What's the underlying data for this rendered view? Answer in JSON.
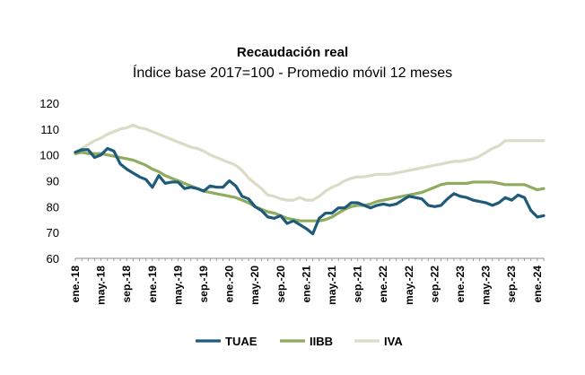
{
  "chart_data": {
    "type": "line",
    "title": "Recaudación real",
    "subtitle": "Índice base 2017=100 - Promedio móvil 12 meses",
    "xlabel": "",
    "ylabel": "",
    "ylim": [
      60,
      120
    ],
    "yticks": [
      "60",
      "70",
      "80",
      "90",
      "100",
      "110",
      "120"
    ],
    "xtick_labels": [
      "ene.-18",
      "may.-18",
      "sep.-18",
      "ene.-19",
      "may.-19",
      "sep.-19",
      "ene.-20",
      "may.-20",
      "sep.-20",
      "ene.-21",
      "may.-21",
      "sep.-21",
      "ene.-22",
      "may.-22",
      "sep.-22",
      "ene.-23",
      "may.-23",
      "sep.-23",
      "ene.-24"
    ],
    "legend_position": "bottom",
    "grid": false,
    "series": [
      {
        "name": "TUAE",
        "color": "#1f5a7a",
        "values": [
          101,
          102,
          102,
          99,
          100,
          102.5,
          101.5,
          96.5,
          94.5,
          93,
          91.5,
          90.5,
          87.5,
          92,
          89,
          89.5,
          89.5,
          87,
          87.5,
          87,
          86,
          88,
          87.5,
          87.5,
          90,
          88,
          84,
          83,
          80,
          78.5,
          76,
          75.5,
          76.5,
          73.5,
          74.5,
          73,
          71.5,
          69.5,
          75.5,
          77.5,
          77.5,
          79.5,
          79.5,
          81.5,
          81.5,
          80.5,
          79.5,
          80.5,
          81,
          80.5,
          81,
          82.5,
          84,
          83.5,
          83,
          80.5,
          80,
          80.5,
          83,
          85,
          84,
          83.5,
          82.5,
          82,
          81.5,
          80.5,
          81.5,
          83.5,
          82.5,
          84.5,
          83.5,
          78.5,
          76,
          76.5
        ]
      },
      {
        "name": "IIBB",
        "color": "#8fab5e",
        "values": [
          100.5,
          101,
          100.5,
          100.5,
          100.5,
          100,
          99.5,
          99,
          98.5,
          98,
          97,
          96,
          94.5,
          93.5,
          92,
          91,
          90,
          89,
          88,
          87,
          86,
          85.5,
          85,
          84.5,
          84,
          83.5,
          82.5,
          81.5,
          80,
          79,
          78,
          77.5,
          76.5,
          75.5,
          75,
          74.5,
          74.5,
          74.5,
          74.5,
          75,
          76,
          77.5,
          79,
          80,
          80.5,
          80.5,
          81,
          82,
          82.5,
          83,
          83.5,
          84,
          84.5,
          85,
          85.5,
          86.5,
          87.5,
          88.5,
          89,
          89,
          89,
          89,
          89.5,
          89.5,
          89.5,
          89.5,
          89,
          88.5,
          88.5,
          88.5,
          88.5,
          87.5,
          86.5,
          87
        ]
      },
      {
        "name": "IVA",
        "color": "#dbdbc6",
        "values": [
          101,
          102.5,
          104,
          105.5,
          106.5,
          108,
          109,
          110,
          110.5,
          111.5,
          110.5,
          110,
          109,
          108,
          107,
          106,
          105,
          104,
          103,
          102.5,
          101.5,
          100,
          99,
          98,
          97,
          96,
          94,
          91,
          89,
          87,
          84.5,
          84,
          83,
          82.5,
          82.5,
          83.5,
          82.5,
          82.5,
          84,
          86,
          87.5,
          88.5,
          90,
          91,
          91.5,
          91.5,
          92,
          92.5,
          92.5,
          92.5,
          93,
          93.5,
          94,
          94.5,
          95,
          95.5,
          96,
          96.5,
          97,
          97.5,
          97.5,
          98,
          98.5,
          99.5,
          101,
          102.5,
          103.5,
          105.5,
          105.5,
          105.5,
          105.5,
          105.5,
          105.5,
          105.5
        ]
      }
    ]
  }
}
